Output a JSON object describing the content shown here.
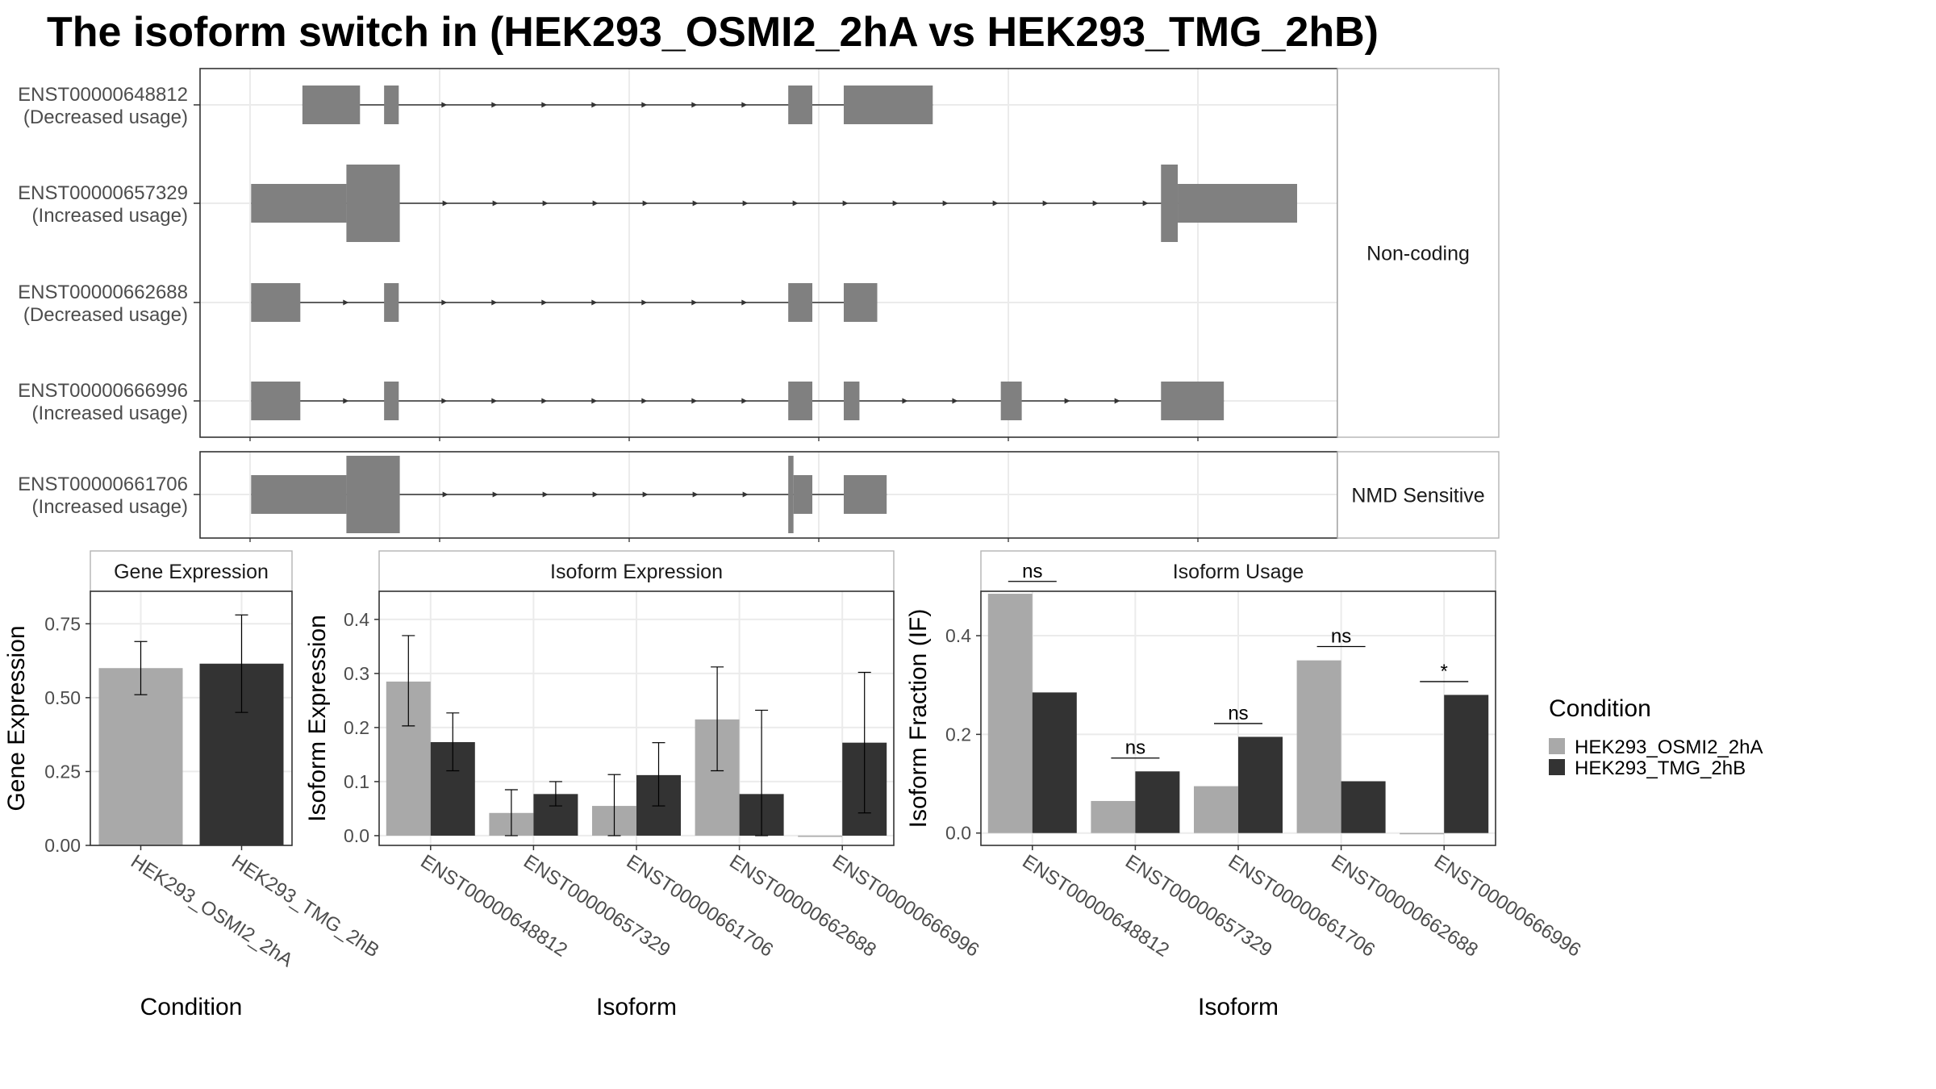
{
  "title": "The isoform switch in  (HEK293_OSMI2_2hA vs HEK293_TMG_2hB)",
  "colors": {
    "exon": "#808080",
    "cond1": "#A9A9A9",
    "cond2": "#333333",
    "grid": "#EBEBEB",
    "strip_bg": "#FFFFFF",
    "panel_border": "#333333",
    "strip_border": "#B3B3B3",
    "text": "#4D4D4D"
  },
  "chart_data": [
    {
      "type": "gene-structure",
      "facets": [
        {
          "label": "Non-coding",
          "tracks": [
            {
              "id": "ENST00000648812",
              "usage": "(Decreased usage)",
              "exons": [
                [
                  0.05,
                  0.105,
                  "t"
                ],
                [
                  0.128,
                  0.142,
                  "t"
                ],
                [
                  0.514,
                  0.537,
                  "t"
                ],
                [
                  0.567,
                  0.652,
                  "t"
                ]
              ]
            },
            {
              "id": "ENST00000657329",
              "usage": "(Increased usage)",
              "exons": [
                [
                  0.001,
                  0.092,
                  "t"
                ],
                [
                  0.092,
                  0.143,
                  "T"
                ],
                [
                  0.87,
                  0.886,
                  "T"
                ],
                [
                  0.886,
                  1.0,
                  "t"
                ]
              ]
            },
            {
              "id": "ENST00000662688",
              "usage": "(Decreased usage)",
              "exons": [
                [
                  0.001,
                  0.048,
                  "t"
                ],
                [
                  0.128,
                  0.142,
                  "t"
                ],
                [
                  0.514,
                  0.537,
                  "t"
                ],
                [
                  0.567,
                  0.599,
                  "t"
                ]
              ]
            },
            {
              "id": "ENST00000666996",
              "usage": "(Increased usage)",
              "exons": [
                [
                  0.001,
                  0.048,
                  "t"
                ],
                [
                  0.128,
                  0.142,
                  "t"
                ],
                [
                  0.514,
                  0.537,
                  "t"
                ],
                [
                  0.567,
                  0.582,
                  "t"
                ],
                [
                  0.717,
                  0.737,
                  "t"
                ],
                [
                  0.87,
                  0.93,
                  "t"
                ]
              ]
            }
          ]
        },
        {
          "label": "NMD Sensitive",
          "tracks": [
            {
              "id": "ENST00000661706",
              "usage": "(Increased usage)",
              "exons": [
                [
                  0.001,
                  0.092,
                  "t"
                ],
                [
                  0.092,
                  0.143,
                  "T"
                ],
                [
                  0.514,
                  0.519,
                  "T"
                ],
                [
                  0.519,
                  0.537,
                  "t"
                ],
                [
                  0.567,
                  0.608,
                  "t"
                ]
              ]
            }
          ]
        }
      ]
    },
    {
      "type": "bar",
      "strip": "Gene Expression",
      "xlabel": "Condition",
      "ylabel": "Gene Expression",
      "ylim": [
        0,
        0.86
      ],
      "yticks": [
        "0.00",
        "0.25",
        "0.50",
        "0.75"
      ],
      "categories": [
        "HEK293_OSMI2_2hA",
        "HEK293_TMG_2hB"
      ],
      "series": [
        {
          "name": "HEK293_OSMI2_2hA",
          "values": [
            0.6,
            null
          ],
          "err_low": [
            0.51,
            null
          ],
          "err_high": [
            0.69,
            null
          ]
        },
        {
          "name": "HEK293_TMG_2hB",
          "values": [
            null,
            0.615
          ],
          "err_low": [
            null,
            0.45
          ],
          "err_high": [
            null,
            0.78
          ]
        }
      ]
    },
    {
      "type": "bar",
      "strip": "Isoform Expression",
      "xlabel": "Isoform",
      "ylabel": "Isoform Expression",
      "ylim": [
        -0.018,
        0.452
      ],
      "yticks": [
        "0.0",
        "0.1",
        "0.2",
        "0.3",
        "0.4"
      ],
      "categories": [
        "ENST00000648812",
        "ENST00000657329",
        "ENST00000661706",
        "ENST00000662688",
        "ENST00000666996"
      ],
      "series": [
        {
          "name": "HEK293_OSMI2_2hA",
          "values": [
            0.285,
            0.042,
            0.055,
            0.215,
            0.0
          ],
          "err_low": [
            0.203,
            0.0,
            0.0,
            0.12,
            null
          ],
          "err_high": [
            0.37,
            0.085,
            0.113,
            0.312,
            null
          ]
        },
        {
          "name": "HEK293_TMG_2hB",
          "values": [
            0.173,
            0.077,
            0.112,
            0.077,
            0.172
          ],
          "err_low": [
            0.12,
            0.055,
            0.055,
            0.0,
            0.042
          ],
          "err_high": [
            0.227,
            0.1,
            0.172,
            0.232,
            0.302
          ]
        }
      ]
    },
    {
      "type": "bar",
      "strip": "Isoform Usage",
      "xlabel": "Isoform",
      "ylabel": "Isoform Fraction (IF)",
      "ylim": [
        -0.025,
        0.49
      ],
      "yticks": [
        "0.0",
        "0.2",
        "0.4"
      ],
      "categories": [
        "ENST00000648812",
        "ENST00000657329",
        "ENST00000661706",
        "ENST00000662688",
        "ENST00000666996"
      ],
      "series": [
        {
          "name": "HEK293_OSMI2_2hA",
          "values": [
            0.485,
            0.065,
            0.095,
            0.35,
            0.0
          ]
        },
        {
          "name": "HEK293_TMG_2hB",
          "values": [
            0.285,
            0.125,
            0.195,
            0.105,
            0.28
          ]
        }
      ],
      "significance": [
        "ns",
        "ns",
        "ns",
        "ns",
        "*"
      ],
      "sig_y": [
        0.51,
        0.152,
        0.222,
        0.378,
        0.307
      ]
    }
  ],
  "legend": {
    "title": "Condition",
    "items": [
      "HEK293_OSMI2_2hA",
      "HEK293_TMG_2hB"
    ]
  }
}
